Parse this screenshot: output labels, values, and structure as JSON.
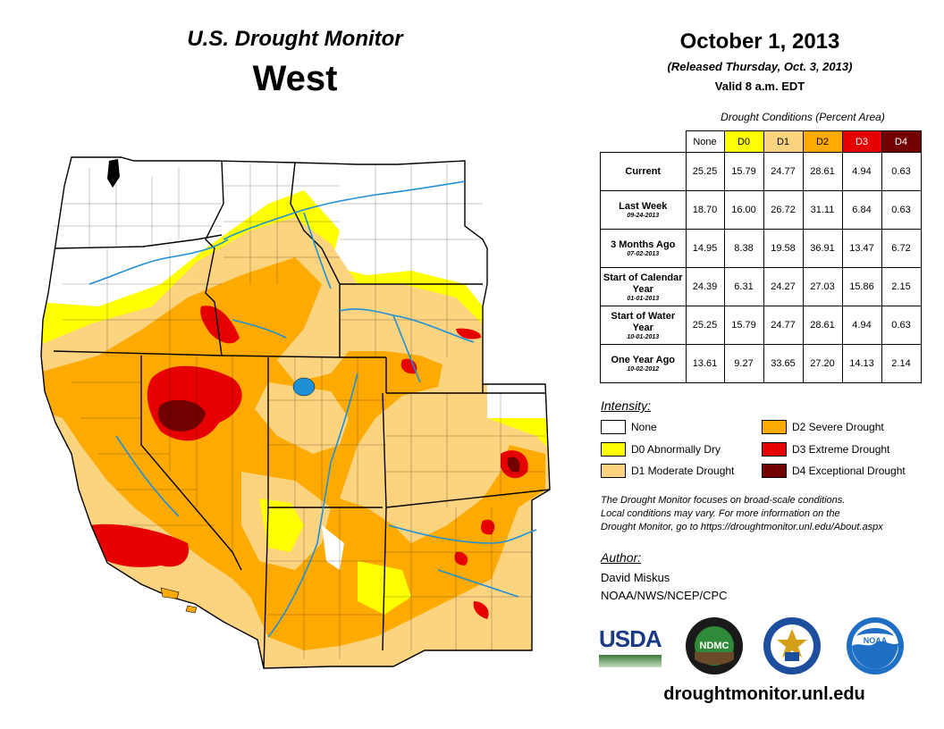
{
  "header": {
    "title": "U.S. Drought Monitor",
    "region": "West",
    "date": "October 1, 2013",
    "released": "(Released Thursday, Oct. 3, 2013)",
    "valid": "Valid 8 a.m. EDT"
  },
  "table": {
    "caption": "Drought Conditions (Percent Area)",
    "columns": [
      {
        "label": "None",
        "color": "#ffffff",
        "text_color": "#000000"
      },
      {
        "label": "D0",
        "color": "#ffff00",
        "text_color": "#000000"
      },
      {
        "label": "D1",
        "color": "#fcd37f",
        "text_color": "#000000"
      },
      {
        "label": "D2",
        "color": "#ffaa00",
        "text_color": "#000000"
      },
      {
        "label": "D3",
        "color": "#e60000",
        "text_color": "#ffffff"
      },
      {
        "label": "D4",
        "color": "#730000",
        "text_color": "#ffffff"
      }
    ],
    "rows": [
      {
        "label": "Current",
        "sublabel": "",
        "values": [
          "25.25",
          "15.79",
          "24.77",
          "28.61",
          "4.94",
          "0.63"
        ]
      },
      {
        "label": "Last Week",
        "sublabel": "09-24-2013",
        "values": [
          "18.70",
          "16.00",
          "26.72",
          "31.11",
          "6.84",
          "0.63"
        ]
      },
      {
        "label": "3 Months Ago",
        "sublabel": "07-02-2013",
        "values": [
          "14.95",
          "8.38",
          "19.58",
          "36.91",
          "13.47",
          "6.72"
        ]
      },
      {
        "label": "Start of Calendar Year",
        "sublabel": "01-01-2013",
        "values": [
          "24.39",
          "6.31",
          "24.27",
          "27.03",
          "15.86",
          "2.15"
        ]
      },
      {
        "label": "Start of Water Year",
        "sublabel": "10-01-2013",
        "values": [
          "25.25",
          "15.79",
          "24.77",
          "28.61",
          "4.94",
          "0.63"
        ]
      },
      {
        "label": "One Year Ago",
        "sublabel": "10-02-2012",
        "values": [
          "13.61",
          "9.27",
          "33.65",
          "27.20",
          "14.13",
          "2.14"
        ]
      }
    ]
  },
  "legend": {
    "heading": "Intensity:",
    "items": [
      {
        "label": "None",
        "color": "#ffffff"
      },
      {
        "label": "D0 Abnormally Dry",
        "color": "#ffff00"
      },
      {
        "label": "D1 Moderate Drought",
        "color": "#fcd37f"
      },
      {
        "label": "D2 Severe Drought",
        "color": "#ffaa00"
      },
      {
        "label": "D3 Extreme Drought",
        "color": "#e60000"
      },
      {
        "label": "D4 Exceptional Drought",
        "color": "#730000"
      }
    ]
  },
  "note": {
    "line1": "The Drought Monitor focuses on broad-scale conditions.",
    "line2": "Local conditions may vary. For more information on the",
    "line3": "Drought Monitor, go to https://droughtmonitor.unl.edu/About.aspx"
  },
  "author": {
    "heading": "Author:",
    "name": "David Miskus",
    "org": "NOAA/NWS/NCEP/CPC"
  },
  "logos": {
    "usda": "USDA",
    "ndmc": "NDMC",
    "noaa": "NOAA"
  },
  "website": "droughtmonitor.unl.edu"
}
